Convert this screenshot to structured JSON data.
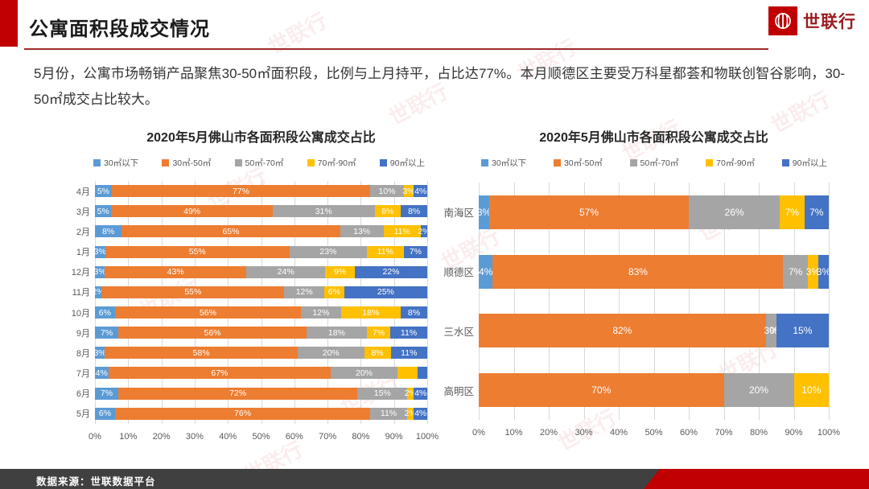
{
  "header": {
    "title": "公寓面积段成交情况",
    "logo_text": "世联行"
  },
  "intro": "5月份，公寓市场畅销产品聚焦30-50㎡面积段，比例与上月持平，占比达77%。本月顺德区主要受万科星都荟和物联创智谷影响，30-50㎡成交占比较大。",
  "watermark": "世联行",
  "footer": {
    "source": "数据来源：世联数据平台"
  },
  "colors": {
    "accent_red": "#C00000",
    "underline_red": "#9E2A2B",
    "footer_gray": "#404040",
    "series": [
      "#5B9BD5",
      "#ED7D31",
      "#A5A5A5",
      "#FFC000",
      "#4472C4"
    ]
  },
  "chart_data": [
    {
      "type": "bar",
      "stacked": true,
      "orientation": "horizontal",
      "title": "2020年5月佛山市各面积段公寓成交占比",
      "legend": [
        "30㎡以下",
        "30㎡-50㎡",
        "50㎡-70㎡",
        "70㎡-90㎡",
        "90㎡以上"
      ],
      "colors": [
        "#5B9BD5",
        "#ED7D31",
        "#A5A5A5",
        "#FFC000",
        "#4472C4"
      ],
      "xlim": [
        0,
        100
      ],
      "grid": true,
      "x_ticks": [
        "0%",
        "10%",
        "20%",
        "30%",
        "40%",
        "50%",
        "60%",
        "70%",
        "80%",
        "90%",
        "100%"
      ],
      "rows": [
        {
          "category": "4月",
          "values": [
            5,
            77,
            10,
            3,
            4
          ],
          "labels": [
            "5%",
            "77%",
            "10%",
            "3%",
            "4%"
          ]
        },
        {
          "category": "3月",
          "values": [
            5,
            49,
            31,
            8,
            8
          ],
          "labels": [
            "5%",
            "49%",
            "31%",
            "8%",
            "8%"
          ]
        },
        {
          "category": "2月",
          "values": [
            8,
            65,
            13,
            11,
            2
          ],
          "labels": [
            "8%",
            "65%",
            "13%",
            "11%",
            "2%"
          ]
        },
        {
          "category": "1月",
          "values": [
            3,
            55,
            23,
            11,
            7
          ],
          "labels": [
            "3%",
            "55%",
            "23%",
            "11%",
            "7%"
          ]
        },
        {
          "category": "12月",
          "values": [
            3,
            43,
            24,
            9,
            22
          ],
          "labels": [
            "3%",
            "43%",
            "24%",
            "9%",
            "22%"
          ]
        },
        {
          "category": "11月",
          "values": [
            2,
            55,
            12,
            6,
            25
          ],
          "labels": [
            "2%",
            "55%",
            "12%",
            "6%",
            "25%"
          ]
        },
        {
          "category": "10月",
          "values": [
            6,
            56,
            12,
            18,
            8
          ],
          "labels": [
            "6%",
            "56%",
            "12%",
            "18%",
            "8%"
          ]
        },
        {
          "category": "9月",
          "values": [
            7,
            56,
            18,
            7,
            11
          ],
          "labels": [
            "7%",
            "56%",
            "18%",
            "7%",
            "11%"
          ]
        },
        {
          "category": "8月",
          "values": [
            3,
            58,
            20,
            8,
            11
          ],
          "labels": [
            "3%",
            "58%",
            "20%",
            "8%",
            "11%"
          ]
        },
        {
          "category": "7月",
          "values": [
            4,
            67,
            20,
            6,
            3
          ],
          "labels": [
            "4%",
            "67%",
            "20%",
            "",
            ""
          ]
        },
        {
          "category": "6月",
          "values": [
            7,
            72,
            15,
            2,
            4
          ],
          "labels": [
            "7%",
            "72%",
            "15%",
            "2%",
            "4%"
          ]
        },
        {
          "category": "5月",
          "values": [
            6,
            76,
            11,
            2,
            4
          ],
          "labels": [
            "6%",
            "76%",
            "11%",
            "2%",
            "4%"
          ]
        }
      ]
    },
    {
      "type": "bar",
      "stacked": true,
      "orientation": "horizontal",
      "title": "2020年5月佛山市各面积段公寓成交占比",
      "legend": [
        "30㎡以下",
        "30㎡-50㎡",
        "50㎡-70㎡",
        "70㎡-90㎡",
        "90㎡以上"
      ],
      "colors": [
        "#5B9BD5",
        "#ED7D31",
        "#A5A5A5",
        "#FFC000",
        "#4472C4"
      ],
      "xlim": [
        0,
        100
      ],
      "grid": true,
      "x_ticks": [
        "0%",
        "10%",
        "20%",
        "30%",
        "40%",
        "50%",
        "60%",
        "70%",
        "80%",
        "90%",
        "100%"
      ],
      "rows": [
        {
          "category": "南海区",
          "values": [
            3,
            57,
            26,
            7,
            7
          ],
          "labels": [
            "3%",
            "57%",
            "26%",
            "7%",
            "7%"
          ]
        },
        {
          "category": "顺德区",
          "values": [
            4,
            83,
            7,
            3,
            3
          ],
          "labels": [
            "4%",
            "83%",
            "7%",
            "3%",
            "3%"
          ]
        },
        {
          "category": "三水区",
          "values": [
            0,
            82,
            3,
            0,
            15
          ],
          "labels": [
            "",
            "82%",
            "3%",
            "0%",
            "15%"
          ]
        },
        {
          "category": "高明区",
          "values": [
            0,
            70,
            20,
            10,
            0
          ],
          "labels": [
            "",
            "70%",
            "20%",
            "10%",
            ""
          ]
        }
      ]
    }
  ]
}
